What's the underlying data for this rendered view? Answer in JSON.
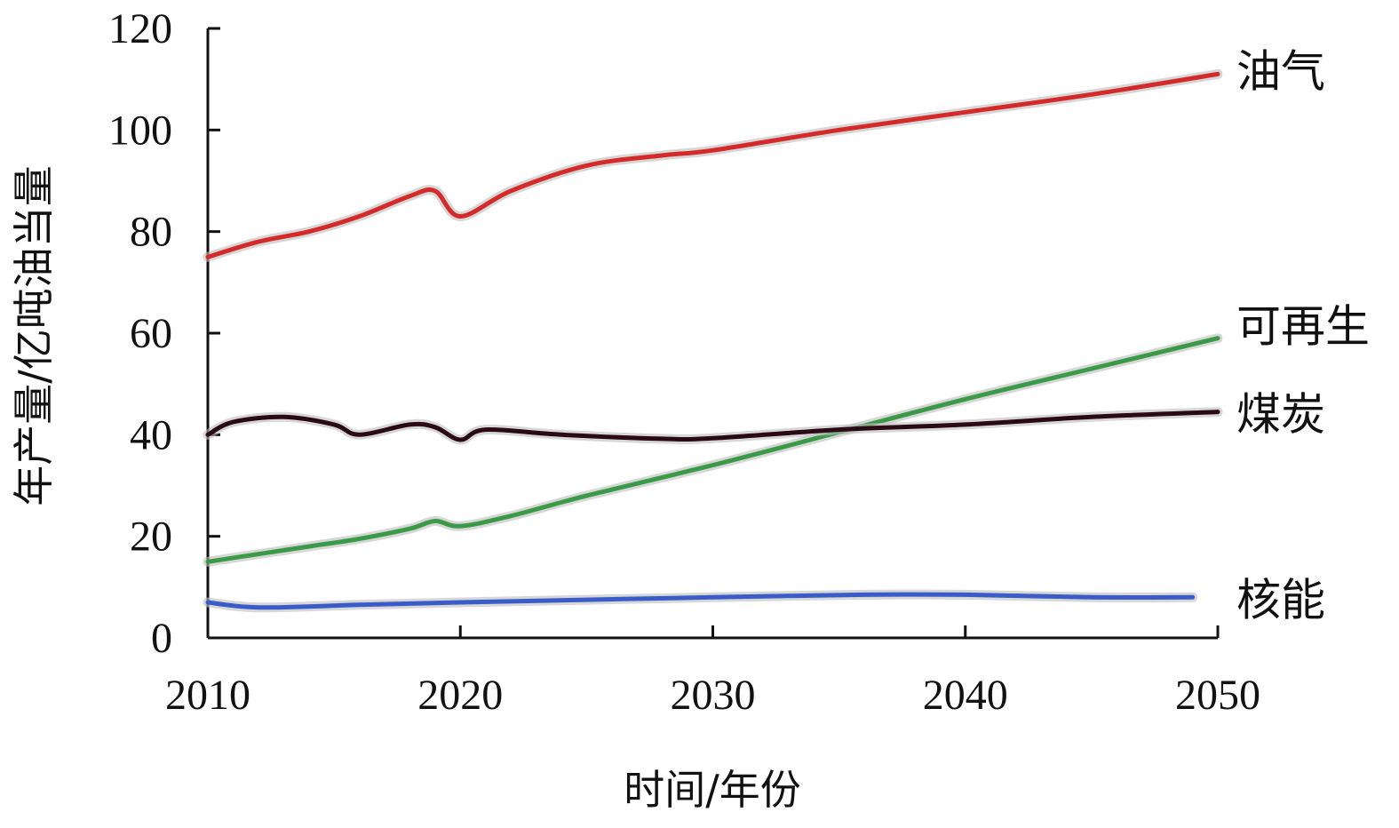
{
  "chart_data": {
    "type": "line",
    "title": "",
    "xlabel": "时间/年份",
    "ylabel": "年产量/亿吨油当量",
    "xlim": [
      2010,
      2050
    ],
    "ylim": [
      0,
      120
    ],
    "xticks": [
      2010,
      2020,
      2030,
      2040,
      2050
    ],
    "yticks": [
      0,
      20,
      40,
      60,
      80,
      100,
      120
    ],
    "grid": false,
    "legend": "none (series labelled at right end of lines)",
    "series": [
      {
        "name": "油气",
        "color": "#d42a2a",
        "x": [
          2010,
          2012,
          2014,
          2016,
          2018,
          2019,
          2020,
          2022,
          2025,
          2028,
          2030,
          2035,
          2040,
          2045,
          2050
        ],
        "y": [
          75,
          78,
          80,
          83,
          87,
          88,
          83,
          88,
          93,
          95,
          96,
          100,
          103.5,
          107,
          111
        ]
      },
      {
        "name": "可再生",
        "color": "#3b9a48",
        "x": [
          2010,
          2012,
          2014,
          2016,
          2018,
          2019,
          2020,
          2022,
          2025,
          2030,
          2035,
          2040,
          2045,
          2050
        ],
        "y": [
          15,
          16.5,
          18,
          19.5,
          21.5,
          23,
          22,
          24,
          28,
          34,
          40.5,
          47,
          53,
          59
        ]
      },
      {
        "name": "煤炭",
        "color": "#2a0a14",
        "x": [
          2010,
          2011,
          2013,
          2015,
          2016,
          2018,
          2019,
          2020,
          2021,
          2024,
          2028,
          2030,
          2035,
          2040,
          2045,
          2050
        ],
        "y": [
          40,
          42.5,
          43.5,
          42,
          40,
          42,
          41.5,
          39,
          41,
          40,
          39.2,
          39.3,
          41,
          42,
          43.5,
          44.5
        ]
      },
      {
        "name": "核能",
        "color": "#3a5cc8",
        "x": [
          2010,
          2012,
          2016,
          2020,
          2025,
          2030,
          2036,
          2040,
          2045,
          2049
        ],
        "y": [
          7,
          6,
          6.5,
          7,
          7.5,
          8,
          8.5,
          8.5,
          8,
          8
        ]
      }
    ]
  }
}
